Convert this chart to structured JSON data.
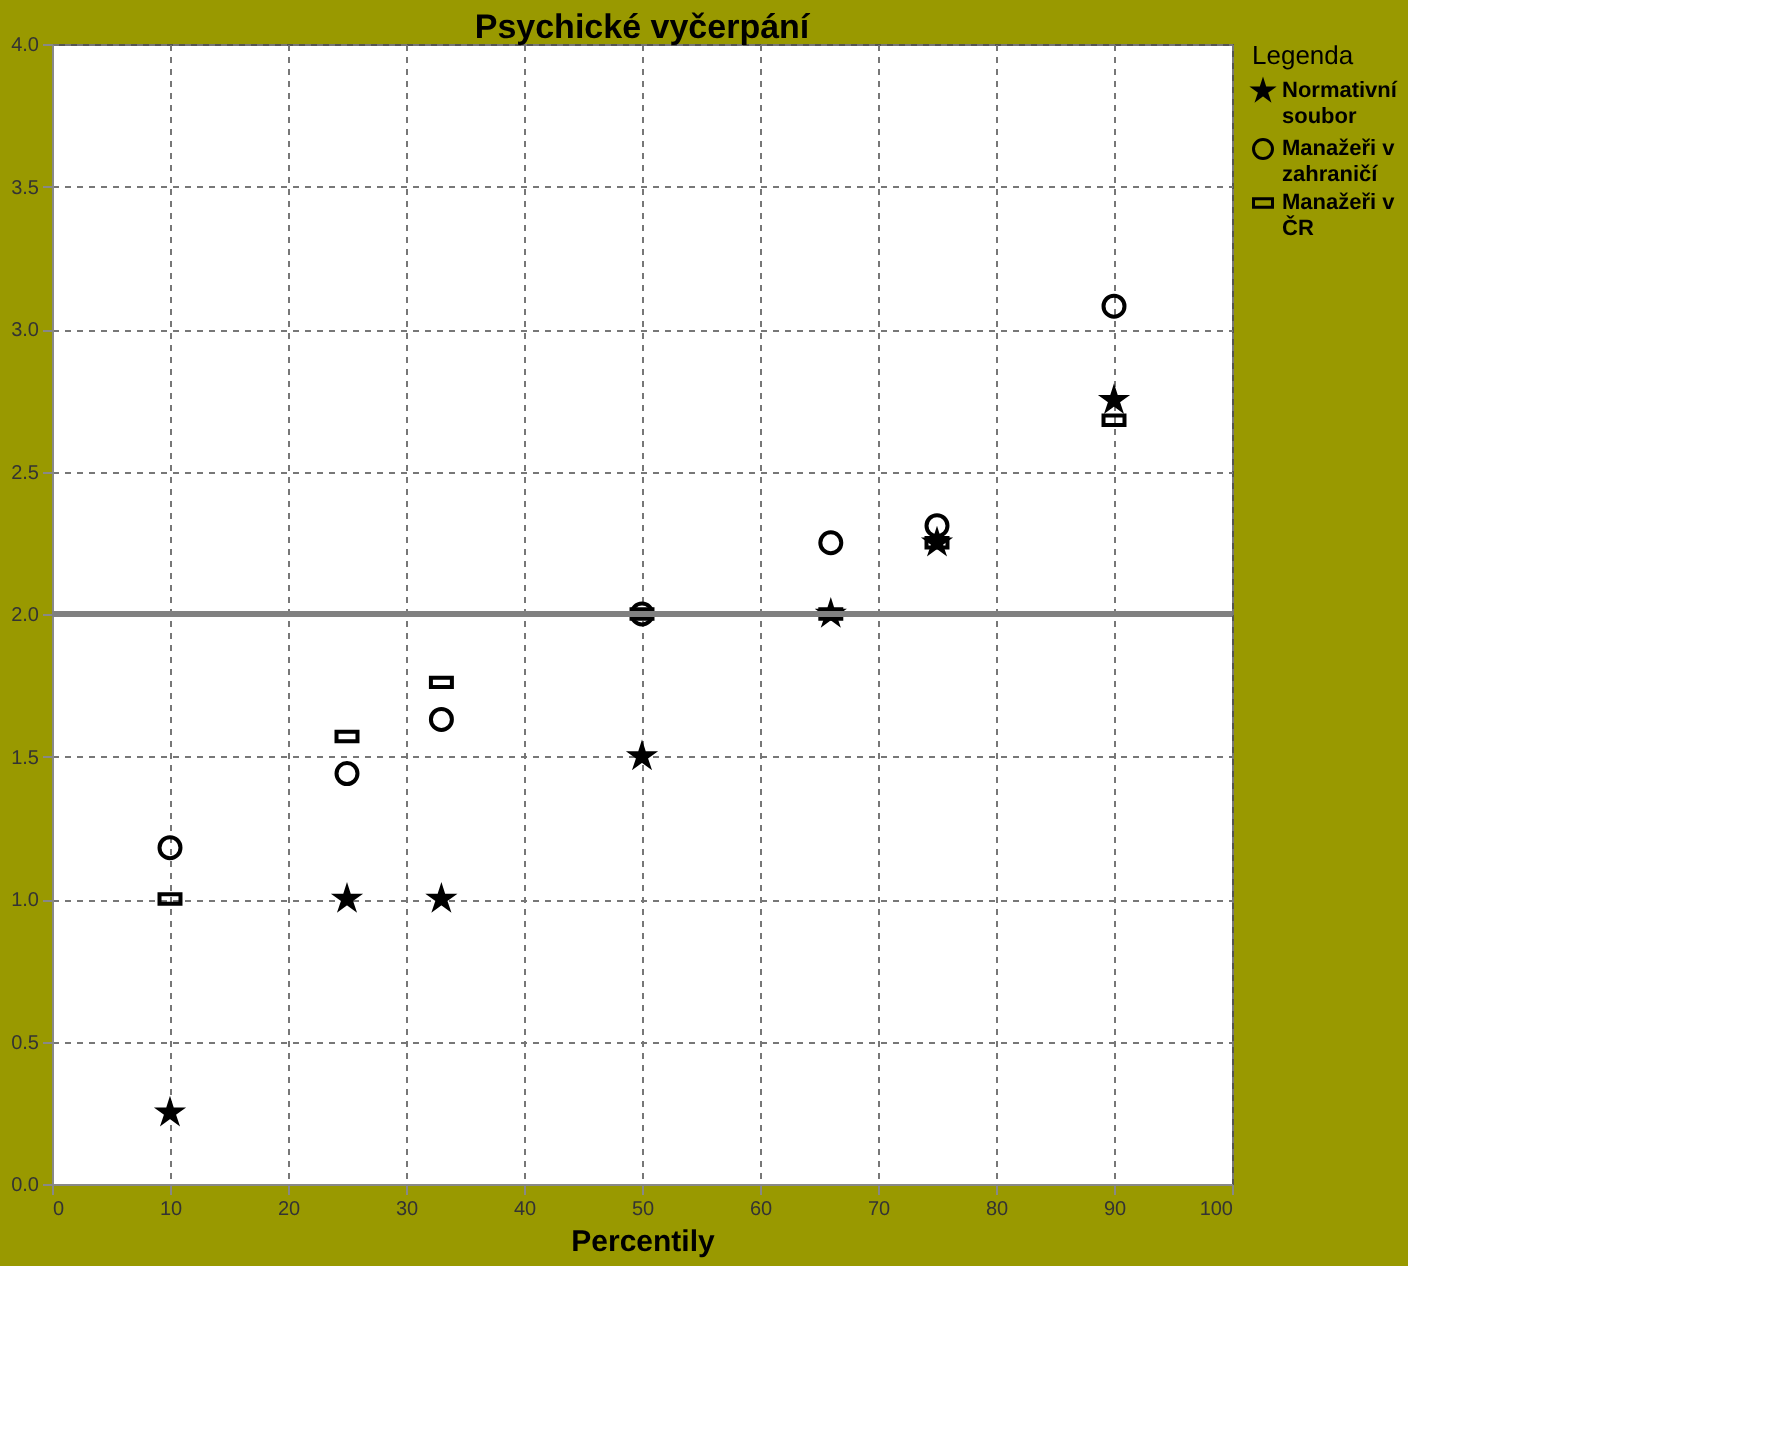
{
  "chart_data": {
    "type": "scatter",
    "title": "Psychické vyčerpání",
    "xlabel": "Percentily",
    "legend_title": "Legenda",
    "legend": "top right",
    "grid": true,
    "x": [
      10,
      25,
      33,
      50,
      66,
      75,
      90
    ],
    "series": [
      {
        "name": "Normativní soubor",
        "color": "#000000",
        "marker": "star",
        "values": [
          0.25,
          1.0,
          1.0,
          1.5,
          2.0,
          2.25,
          2.75
        ]
      },
      {
        "name": "Manažeři v zahraničí",
        "color": "#000000",
        "marker": "circle",
        "values": [
          1.18,
          1.44,
          1.63,
          2.0,
          2.25,
          2.31,
          3.08
        ]
      },
      {
        "name": "Manažeři v ČR",
        "color": "#000000",
        "marker": "square",
        "values": [
          1.0,
          1.57,
          1.76,
          2.0,
          2.0,
          2.25,
          2.68
        ]
      }
    ],
    "xlim": [
      0,
      100
    ],
    "xticks": [
      0,
      10,
      20,
      30,
      40,
      50,
      60,
      70,
      80,
      90,
      100
    ],
    "ylim": [
      0,
      4
    ],
    "yticks": [
      {
        "value": 0,
        "label": "0.0"
      },
      0.5,
      {
        "value": 1,
        "label": "1.0"
      },
      1.5,
      {
        "value": 2,
        "label": "2.0"
      },
      2.5,
      {
        "value": 3,
        "label": "3.0"
      },
      3.5,
      {
        "value": 4,
        "label": "4.0"
      }
    ],
    "ref_lines": [
      {
        "axis": "y",
        "value": 2.0,
        "label": null,
        "color": "#808080"
      }
    ]
  }
}
